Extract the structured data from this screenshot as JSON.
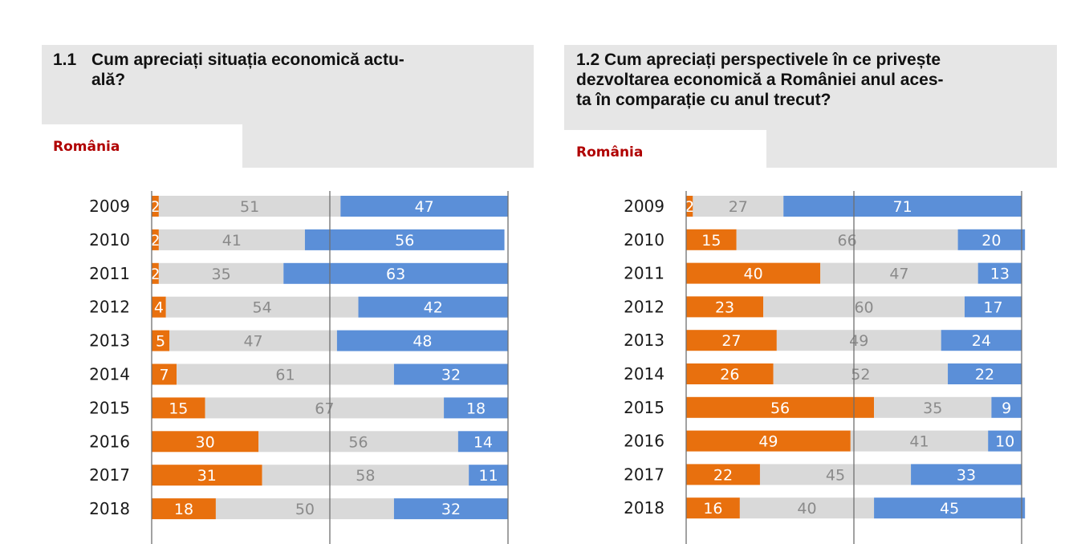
{
  "colors": {
    "negative": "#e8700e",
    "neutral": "#d9d9d9",
    "positive": "#5b8fd8",
    "label_on_orange": "#ffffff",
    "label_on_gray": "#8a8a8a",
    "label_on_blue": "#ffffff",
    "title_bg": "#e6e6e6",
    "region_text": "#b00000"
  },
  "panels": [
    {
      "number": "1.1",
      "title": "Cum apreciați situația economică actu-ală?",
      "title_lines": [
        "Cum apreciați situația economică actu-",
        "ală?"
      ],
      "region": "România"
    },
    {
      "number": "1.2",
      "title": "Cum apreciați perspectivele în ce privește dezvoltarea economică a României anul aces-ta în comparație cu anul trecut?",
      "title_lines": [
        "Cum apreciați perspectivele în ce privește",
        "dezvoltarea economică a României anul aces-",
        "ta în comparație cu anul trecut?"
      ],
      "region": "România"
    }
  ],
  "chart_data": [
    {
      "type": "bar",
      "stacked": true,
      "orientation": "horizontal",
      "percent_scale": true,
      "xlim": [
        0,
        100
      ],
      "grid": true,
      "categories": [
        "2009",
        "2010",
        "2011",
        "2012",
        "2013",
        "2014",
        "2015",
        "2016",
        "2017",
        "2018"
      ],
      "series": [
        {
          "values": [
            2,
            2,
            2,
            4,
            5,
            7,
            15,
            30,
            31,
            18
          ]
        },
        {
          "values": [
            51,
            41,
            35,
            54,
            47,
            61,
            67,
            56,
            58,
            50
          ]
        },
        {
          "values": [
            47,
            56,
            63,
            42,
            48,
            32,
            18,
            14,
            11,
            32
          ]
        }
      ]
    },
    {
      "type": "bar",
      "stacked": true,
      "orientation": "horizontal",
      "percent_scale": true,
      "xlim": [
        0,
        100
      ],
      "grid": true,
      "categories": [
        "2009",
        "2010",
        "2011",
        "2012",
        "2013",
        "2014",
        "2015",
        "2016",
        "2017",
        "2018"
      ],
      "series": [
        {
          "values": [
            2,
            15,
            40,
            23,
            27,
            26,
            56,
            49,
            22,
            16
          ]
        },
        {
          "values": [
            27,
            66,
            47,
            60,
            49,
            52,
            35,
            41,
            45,
            40
          ]
        },
        {
          "values": [
            71,
            20,
            13,
            17,
            24,
            22,
            9,
            10,
            33,
            45
          ]
        }
      ]
    }
  ]
}
